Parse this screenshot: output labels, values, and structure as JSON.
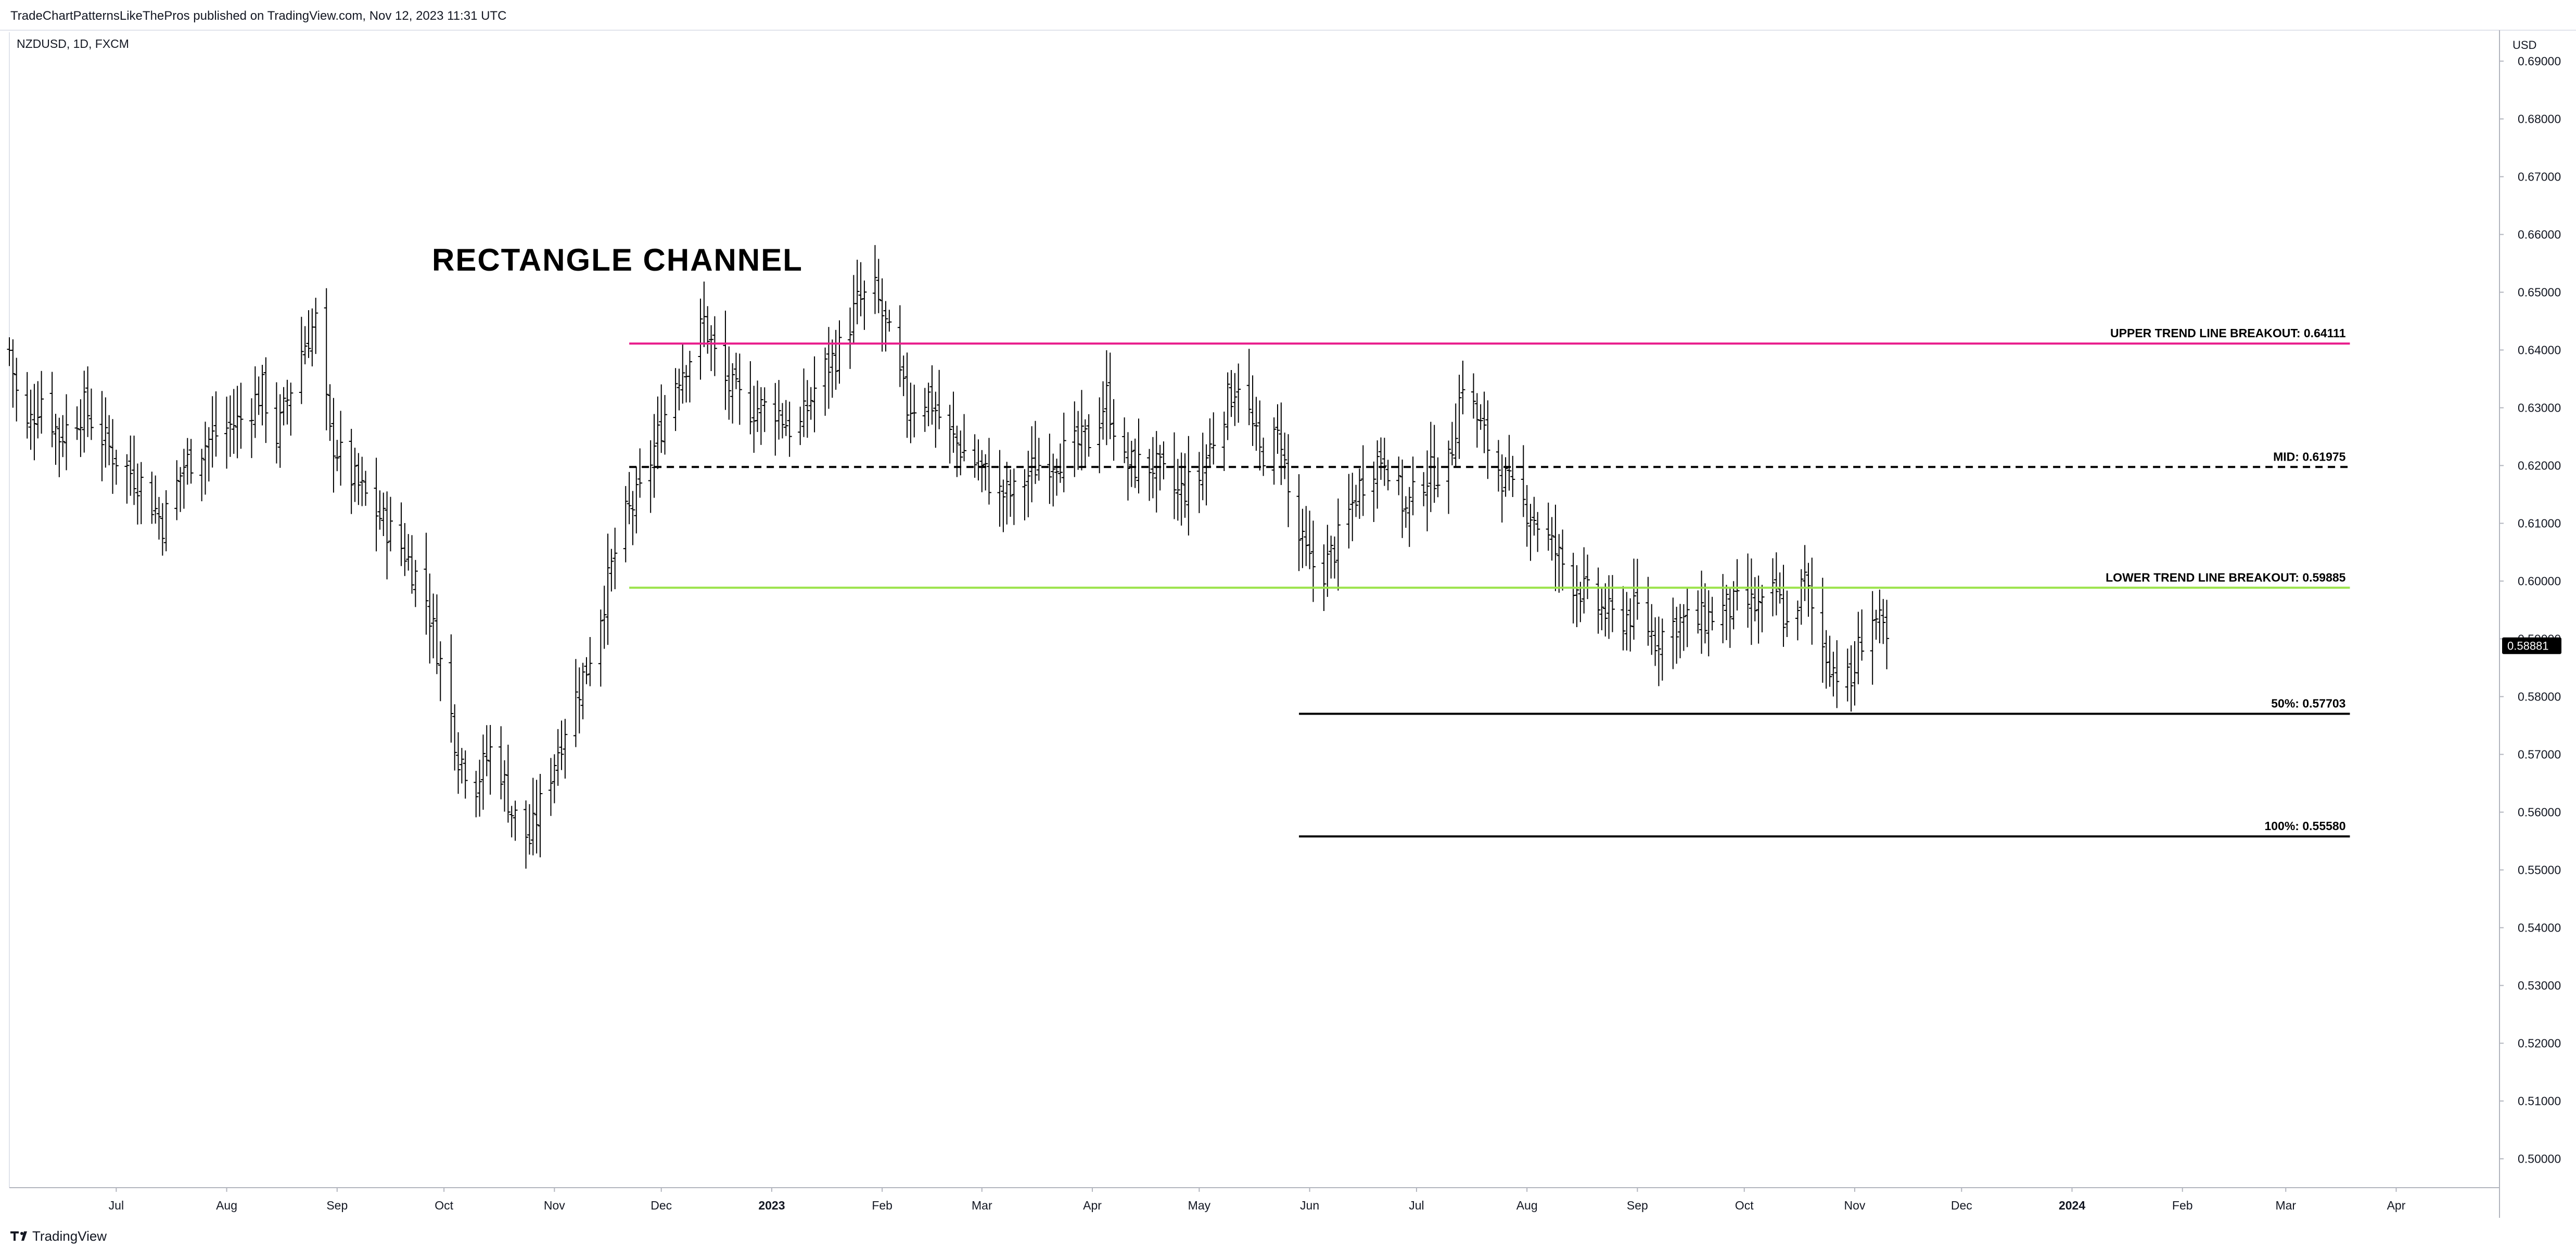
{
  "header": {
    "publish_line": "TradeChartPatternsLikeThePros published on TradingView.com, Nov 12, 2023 11:31 UTC",
    "symbol_line": "NZDUSD, 1D, FXCM"
  },
  "footer": {
    "brand": "TradingView",
    "logo_icon": "tradingview-logo-icon"
  },
  "chart_data": {
    "type": "ohlc-bar",
    "symbol": "NZDUSD",
    "interval": "1D",
    "source": "FXCM",
    "title": "RECTANGLE CHANNEL",
    "currency": "USD",
    "last_price": "0.58881",
    "x_range": [
      "2022-06-01",
      "2024-04-30"
    ],
    "ylim": [
      0.495,
      0.695
    ],
    "y_ticks": [
      "0.50000",
      "0.51000",
      "0.52000",
      "0.53000",
      "0.54000",
      "0.55000",
      "0.56000",
      "0.57000",
      "0.58000",
      "0.59000",
      "0.60000",
      "0.61000",
      "0.62000",
      "0.63000",
      "0.64000",
      "0.65000",
      "0.66000",
      "0.67000",
      "0.68000",
      "0.69000"
    ],
    "x_ticks": [
      {
        "label": "Jul",
        "date": "2022-07-01"
      },
      {
        "label": "Aug",
        "date": "2022-08-01"
      },
      {
        "label": "Sep",
        "date": "2022-09-01"
      },
      {
        "label": "Oct",
        "date": "2022-10-01"
      },
      {
        "label": "Nov",
        "date": "2022-11-01"
      },
      {
        "label": "Dec",
        "date": "2022-12-01"
      },
      {
        "label": "2023",
        "date": "2023-01-01",
        "bold": true
      },
      {
        "label": "Feb",
        "date": "2023-02-01"
      },
      {
        "label": "Mar",
        "date": "2023-03-01"
      },
      {
        "label": "Apr",
        "date": "2023-04-01"
      },
      {
        "label": "May",
        "date": "2023-05-01"
      },
      {
        "label": "Jun",
        "date": "2023-06-01"
      },
      {
        "label": "Jul",
        "date": "2023-07-01"
      },
      {
        "label": "Aug",
        "date": "2023-08-01"
      },
      {
        "label": "Sep",
        "date": "2023-09-01"
      },
      {
        "label": "Oct",
        "date": "2023-10-01"
      },
      {
        "label": "Nov",
        "date": "2023-11-01"
      },
      {
        "label": "Dec",
        "date": "2023-12-01"
      },
      {
        "label": "2024",
        "date": "2024-01-01",
        "bold": true
      },
      {
        "label": "Feb",
        "date": "2024-02-01"
      },
      {
        "label": "Mar",
        "date": "2024-03-01"
      },
      {
        "label": "Apr",
        "date": "2024-04-01"
      }
    ],
    "levels": [
      {
        "label": "UPPER TREND LINE BREAKOUT: 0.64111",
        "price": 0.64111,
        "from": "2022-11-22",
        "to": "2024-03-19",
        "color": "#e91e8c",
        "style": "solid"
      },
      {
        "label": "MID: 0.61975",
        "price": 0.61975,
        "from": "2022-11-22",
        "to": "2024-03-19",
        "color": "#000000",
        "style": "dashed"
      },
      {
        "label": "LOWER TREND LINE BREAKOUT: 0.59885",
        "price": 0.59885,
        "from": "2022-11-22",
        "to": "2024-03-19",
        "color": "#9be34a",
        "style": "solid"
      },
      {
        "label": "50%: 0.57703",
        "price": 0.57703,
        "from": "2023-05-29",
        "to": "2024-03-19",
        "color": "#000000",
        "style": "solid"
      },
      {
        "label": "100%: 0.55580",
        "price": 0.5558,
        "from": "2023-05-29",
        "to": "2024-03-19",
        "color": "#000000",
        "style": "solid"
      }
    ],
    "series_anchors": [
      [
        "2022-06-01",
        0.64
      ],
      [
        "2022-06-05",
        0.625
      ],
      [
        "2022-06-10",
        0.632
      ],
      [
        "2022-06-15",
        0.625
      ],
      [
        "2022-06-22",
        0.63
      ],
      [
        "2022-06-30",
        0.622
      ],
      [
        "2022-07-08",
        0.617
      ],
      [
        "2022-07-14",
        0.61
      ],
      [
        "2022-07-20",
        0.62
      ],
      [
        "2022-07-28",
        0.625
      ],
      [
        "2022-08-05",
        0.628
      ],
      [
        "2022-08-11",
        0.633
      ],
      [
        "2022-08-15",
        0.625
      ],
      [
        "2022-08-22",
        0.64
      ],
      [
        "2022-08-26",
        0.645
      ],
      [
        "2022-08-30",
        0.625
      ],
      [
        "2022-09-05",
        0.618
      ],
      [
        "2022-09-12",
        0.612
      ],
      [
        "2022-09-20",
        0.605
      ],
      [
        "2022-09-26",
        0.597
      ],
      [
        "2022-10-01",
        0.583
      ],
      [
        "2022-10-05",
        0.57
      ],
      [
        "2022-10-10",
        0.565
      ],
      [
        "2022-10-15",
        0.572
      ],
      [
        "2022-10-20",
        0.56
      ],
      [
        "2022-10-25",
        0.555
      ],
      [
        "2022-10-30",
        0.565
      ],
      [
        "2022-11-04",
        0.575
      ],
      [
        "2022-11-10",
        0.585
      ],
      [
        "2022-11-15",
        0.597
      ],
      [
        "2022-11-20",
        0.61
      ],
      [
        "2022-11-25",
        0.615
      ],
      [
        "2022-11-30",
        0.625
      ],
      [
        "2022-12-05",
        0.635
      ],
      [
        "2022-12-10",
        0.64
      ],
      [
        "2022-12-13",
        0.645
      ],
      [
        "2022-12-18",
        0.635
      ],
      [
        "2022-12-25",
        0.63
      ],
      [
        "2023-01-02",
        0.63
      ],
      [
        "2023-01-08",
        0.625
      ],
      [
        "2023-01-14",
        0.635
      ],
      [
        "2023-01-20",
        0.64
      ],
      [
        "2023-01-25",
        0.648
      ],
      [
        "2023-01-30",
        0.65
      ],
      [
        "2023-02-03",
        0.642
      ],
      [
        "2023-02-08",
        0.63
      ],
      [
        "2023-02-14",
        0.632
      ],
      [
        "2023-02-20",
        0.625
      ],
      [
        "2023-02-28",
        0.62
      ],
      [
        "2023-03-06",
        0.615
      ],
      [
        "2023-03-10",
        0.615
      ],
      [
        "2023-03-16",
        0.62
      ],
      [
        "2023-03-24",
        0.622
      ],
      [
        "2023-04-01",
        0.625
      ],
      [
        "2023-04-05",
        0.632
      ],
      [
        "2023-04-10",
        0.62
      ],
      [
        "2023-04-18",
        0.62
      ],
      [
        "2023-04-25",
        0.615
      ],
      [
        "2023-05-01",
        0.618
      ],
      [
        "2023-05-08",
        0.63
      ],
      [
        "2023-05-12",
        0.635
      ],
      [
        "2023-05-18",
        0.622
      ],
      [
        "2023-05-24",
        0.625
      ],
      [
        "2023-05-27",
        0.61
      ],
      [
        "2023-06-01",
        0.603
      ],
      [
        "2023-06-05",
        0.602
      ],
      [
        "2023-06-10",
        0.608
      ],
      [
        "2023-06-14",
        0.615
      ],
      [
        "2023-06-18",
        0.62
      ],
      [
        "2023-06-22",
        0.622
      ],
      [
        "2023-06-28",
        0.612
      ],
      [
        "2023-07-03",
        0.618
      ],
      [
        "2023-07-10",
        0.62
      ],
      [
        "2023-07-14",
        0.635
      ],
      [
        "2023-07-18",
        0.628
      ],
      [
        "2023-07-22",
        0.622
      ],
      [
        "2023-07-28",
        0.615
      ],
      [
        "2023-08-02",
        0.612
      ],
      [
        "2023-08-08",
        0.606
      ],
      [
        "2023-08-14",
        0.6
      ],
      [
        "2023-08-20",
        0.596
      ],
      [
        "2023-08-26",
        0.593
      ],
      [
        "2023-09-01",
        0.595
      ],
      [
        "2023-09-06",
        0.59
      ],
      [
        "2023-09-12",
        0.593
      ],
      [
        "2023-09-18",
        0.593
      ],
      [
        "2023-09-25",
        0.595
      ],
      [
        "2023-10-02",
        0.596
      ],
      [
        "2023-10-06",
        0.595
      ],
      [
        "2023-10-10",
        0.598
      ],
      [
        "2023-10-13",
        0.592
      ],
      [
        "2023-10-18",
        0.6
      ],
      [
        "2023-10-22",
        0.59
      ],
      [
        "2023-10-26",
        0.585
      ],
      [
        "2023-10-31",
        0.582
      ],
      [
        "2023-11-02",
        0.588
      ],
      [
        "2023-11-05",
        0.595
      ],
      [
        "2023-11-08",
        0.592
      ],
      [
        "2023-11-10",
        0.589
      ]
    ]
  }
}
